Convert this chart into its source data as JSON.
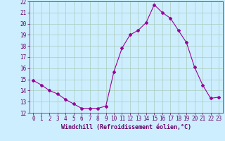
{
  "x": [
    0,
    1,
    2,
    3,
    4,
    5,
    6,
    7,
    8,
    9,
    10,
    11,
    12,
    13,
    14,
    15,
    16,
    17,
    18,
    19,
    20,
    21,
    22,
    23
  ],
  "y": [
    14.9,
    14.5,
    14.0,
    13.7,
    13.2,
    12.8,
    12.4,
    12.4,
    12.4,
    12.6,
    15.7,
    17.8,
    19.0,
    19.4,
    20.1,
    21.7,
    21.0,
    20.5,
    19.4,
    18.3,
    16.1,
    14.5,
    13.3,
    13.4
  ],
  "line_color": "#990099",
  "marker": "D",
  "marker_size": 2.0,
  "bg_color": "#cceeff",
  "grid_color": "#aaccbb",
  "xlabel": "Windchill (Refroidissement éolien,°C)",
  "xlabel_color": "#660066",
  "tick_color": "#660066",
  "xlim": [
    -0.5,
    23.5
  ],
  "ylim": [
    12,
    22
  ],
  "yticks": [
    12,
    13,
    14,
    15,
    16,
    17,
    18,
    19,
    20,
    21,
    22
  ],
  "xticks": [
    0,
    1,
    2,
    3,
    4,
    5,
    6,
    7,
    8,
    9,
    10,
    11,
    12,
    13,
    14,
    15,
    16,
    17,
    18,
    19,
    20,
    21,
    22,
    23
  ],
  "tick_fontsize": 5.5,
  "xlabel_fontsize": 6.0
}
